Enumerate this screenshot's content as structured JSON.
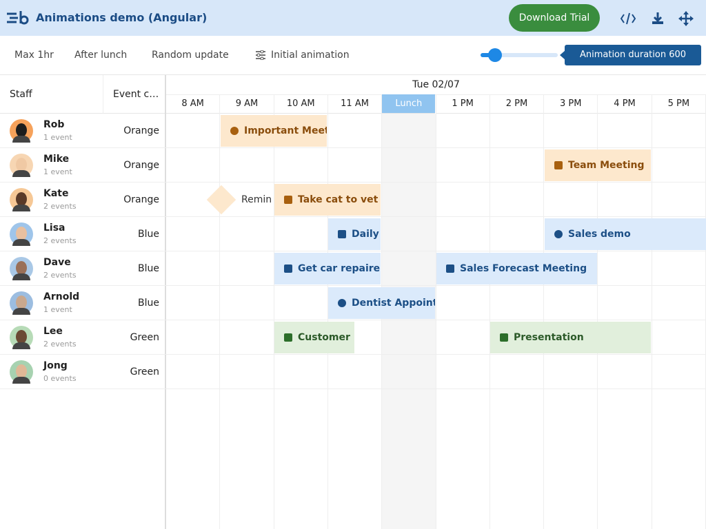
{
  "header": {
    "title": "Animations demo (Angular)",
    "download_button": "Download Trial"
  },
  "toolbar": {
    "buttons": [
      "Max 1hr",
      "After lunch",
      "Random update",
      "Initial animation"
    ],
    "slider_tooltip": "Animation duration 600"
  },
  "grid": {
    "columns": {
      "staff": "Staff",
      "event_color": "Event c…"
    },
    "date": "Tue 02/07",
    "hours": [
      "8 AM",
      "9 AM",
      "10 AM",
      "11 AM",
      "Lunch",
      "1 PM",
      "2 PM",
      "3 PM",
      "4 PM",
      "5 PM"
    ],
    "rows": [
      {
        "name": "Rob",
        "event_count": "1 event",
        "color": "Orange",
        "events": [
          {
            "text": "Important Meet"
          }
        ]
      },
      {
        "name": "Mike",
        "event_count": "1 event",
        "color": "Orange",
        "events": [
          {
            "text": "Team Meeting"
          }
        ]
      },
      {
        "name": "Kate",
        "event_count": "2 events",
        "color": "Orange",
        "events": [
          {
            "text": "Remin"
          },
          {
            "text": "Take cat to vet"
          }
        ]
      },
      {
        "name": "Lisa",
        "event_count": "2 events",
        "color": "Blue",
        "events": [
          {
            "text": "Daily"
          },
          {
            "text": "Sales demo"
          }
        ]
      },
      {
        "name": "Dave",
        "event_count": "2 events",
        "color": "Blue",
        "events": [
          {
            "text": "Get car repaire"
          },
          {
            "text": "Sales Forecast Meeting"
          }
        ]
      },
      {
        "name": "Arnold",
        "event_count": "1 event",
        "color": "Blue",
        "events": [
          {
            "text": "Dentist Appoint"
          }
        ]
      },
      {
        "name": "Lee",
        "event_count": "2 events",
        "color": "Green",
        "events": [
          {
            "text": "Customer"
          },
          {
            "text": "Presentation"
          }
        ]
      },
      {
        "name": "Jong",
        "event_count": "0 events",
        "color": "Green",
        "events": []
      }
    ]
  }
}
